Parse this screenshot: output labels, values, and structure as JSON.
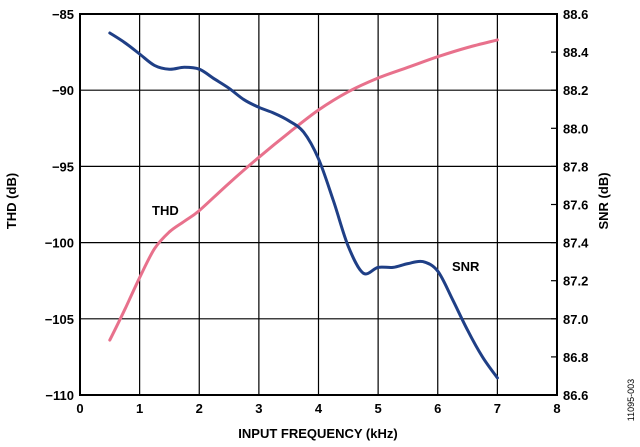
{
  "chart_data": {
    "type": "line",
    "xlabel": "INPUT FREQUENCY (kHz)",
    "ylabel_left": "THD (dB)",
    "ylabel_right": "SNR (dB)",
    "xlim": [
      0,
      8
    ],
    "ylim_left": [
      -110,
      -85
    ],
    "ylim_right": [
      86.6,
      88.6
    ],
    "x_ticks": [
      "0",
      "1",
      "2",
      "3",
      "4",
      "5",
      "6",
      "7",
      "8"
    ],
    "y_left_ticks": [
      "−110",
      "−105",
      "−100",
      "−95",
      "−90",
      "−85"
    ],
    "y_right_ticks": [
      "86.6",
      "86.8",
      "87.0",
      "87.2",
      "87.4",
      "87.6",
      "87.8",
      "88.0",
      "88.2",
      "88.4",
      "88.6"
    ],
    "grid": true,
    "series": [
      {
        "name": "THD",
        "axis": "left",
        "color": "#e8718c",
        "x": [
          0.5,
          0.75,
          1.0,
          1.25,
          1.5,
          1.75,
          2.0,
          2.5,
          3.0,
          3.5,
          4.0,
          4.5,
          5.0,
          5.5,
          6.0,
          6.5,
          7.0
        ],
        "y": [
          -106.4,
          -104.4,
          -102.3,
          -100.4,
          -99.3,
          -98.6,
          -97.9,
          -96.1,
          -94.4,
          -92.8,
          -91.3,
          -90.1,
          -89.2,
          -88.5,
          -87.8,
          -87.2,
          -86.7
        ]
      },
      {
        "name": "SNR",
        "axis": "right",
        "color": "#1f3f86",
        "x": [
          0.5,
          0.75,
          1.0,
          1.25,
          1.5,
          1.75,
          2.0,
          2.25,
          2.5,
          2.75,
          3.0,
          3.25,
          3.5,
          3.75,
          4.0,
          4.25,
          4.5,
          4.75,
          5.0,
          5.25,
          5.5,
          5.75,
          6.0,
          6.25,
          6.5,
          6.75,
          7.0
        ],
        "y": [
          88.5,
          88.45,
          88.39,
          88.33,
          88.31,
          88.32,
          88.31,
          88.26,
          88.21,
          88.15,
          88.11,
          88.08,
          88.04,
          87.98,
          87.84,
          87.62,
          87.38,
          87.24,
          87.27,
          87.27,
          87.29,
          87.3,
          87.25,
          87.1,
          86.94,
          86.8,
          86.69
        ]
      }
    ],
    "annotations": [
      {
        "text": "THD"
      },
      {
        "text": "SNR"
      }
    ]
  },
  "figure_id": "11095-003"
}
